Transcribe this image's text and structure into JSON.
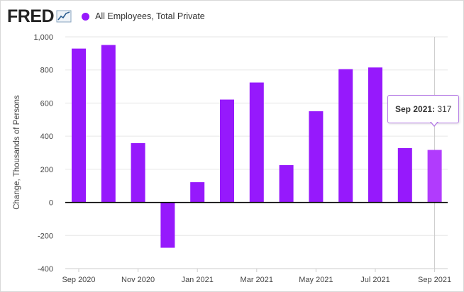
{
  "header": {
    "logo_text": "FRED",
    "logo_icon": "chart-line-icon",
    "legend_label": "All Employees, Total Private"
  },
  "colors": {
    "series": "#9619fc",
    "series_hover": "#b13bfd",
    "zero_line": "#000000",
    "grid": "#e6e6e6"
  },
  "tooltip": {
    "date": "Sep 2021",
    "value": "317"
  },
  "chart_data": {
    "type": "bar",
    "title": "",
    "xlabel": "",
    "ylabel": "Change, Thousands of Persons",
    "ylim": [
      -400,
      1000
    ],
    "yticks": [
      -400,
      -200,
      0,
      200,
      400,
      600,
      800,
      1000
    ],
    "ytick_labels": [
      "-400",
      "-200",
      "0",
      "200",
      "400",
      "600",
      "800",
      "1,000"
    ],
    "categories": [
      "Sep 2020",
      "Oct 2020",
      "Nov 2020",
      "Dec 2020",
      "Jan 2021",
      "Feb 2021",
      "Mar 2021",
      "Apr 2021",
      "May 2021",
      "Jun 2021",
      "Jul 2021",
      "Aug 2021",
      "Sep 2021"
    ],
    "x_tick_labels": [
      "Sep 2020",
      "Nov 2020",
      "Jan 2021",
      "Mar 2021",
      "May 2021",
      "Jul 2021",
      "Sep 2021"
    ],
    "series": [
      {
        "name": "All Employees, Total Private",
        "values": [
          929,
          951,
          358,
          -274,
          122,
          621,
          724,
          225,
          551,
          805,
          815,
          328,
          317
        ]
      }
    ],
    "highlighted_category": "Sep 2021",
    "grid": true,
    "legend": "top-left"
  }
}
